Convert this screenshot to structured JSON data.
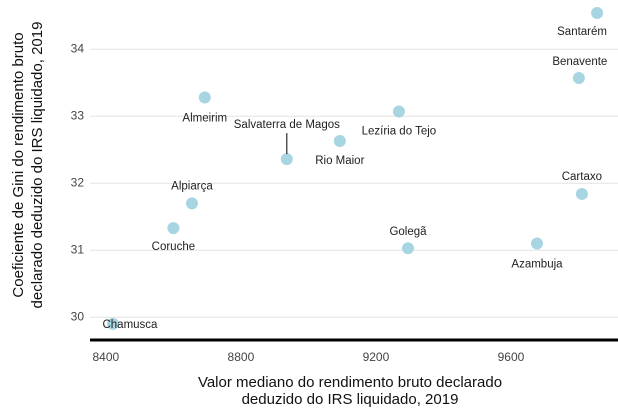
{
  "chart_data": {
    "type": "scatter",
    "labels": [
      "Chamusca",
      "Coruche",
      "Alpiarça",
      "Almeirim",
      "Salvaterra de Magos",
      "Rio Maior",
      "Lezíria do Tejo",
      "Golegã",
      "Azambuja",
      "Cartaxo",
      "Benavente",
      "Santarém"
    ],
    "x": [
      8421,
      8600,
      8655,
      8693,
      8936,
      9093,
      9268,
      9295,
      9677,
      9810,
      9801,
      9855
    ],
    "values": [
      29.9,
      31.33,
      31.7,
      33.28,
      32.36,
      32.63,
      33.07,
      31.03,
      31.1,
      31.84,
      33.57,
      34.54
    ],
    "color": "#a8d5e2",
    "xlabel": [
      "Valor mediano do rendimento bruto declarado",
      "deduzido do IRS liquidado, 2019"
    ],
    "ylabel": [
      "Coeficiente de Gini do rendimento bruto",
      "declarado deduzido do IRS liquidado, 2019"
    ],
    "xlim": [
      8353,
      9917
    ],
    "ylim": [
      29.66,
      34.66
    ],
    "xticks": [
      8400,
      8800,
      9200,
      9600
    ],
    "yticks": [
      30,
      31,
      32,
      33,
      34
    ],
    "grid": true
  }
}
